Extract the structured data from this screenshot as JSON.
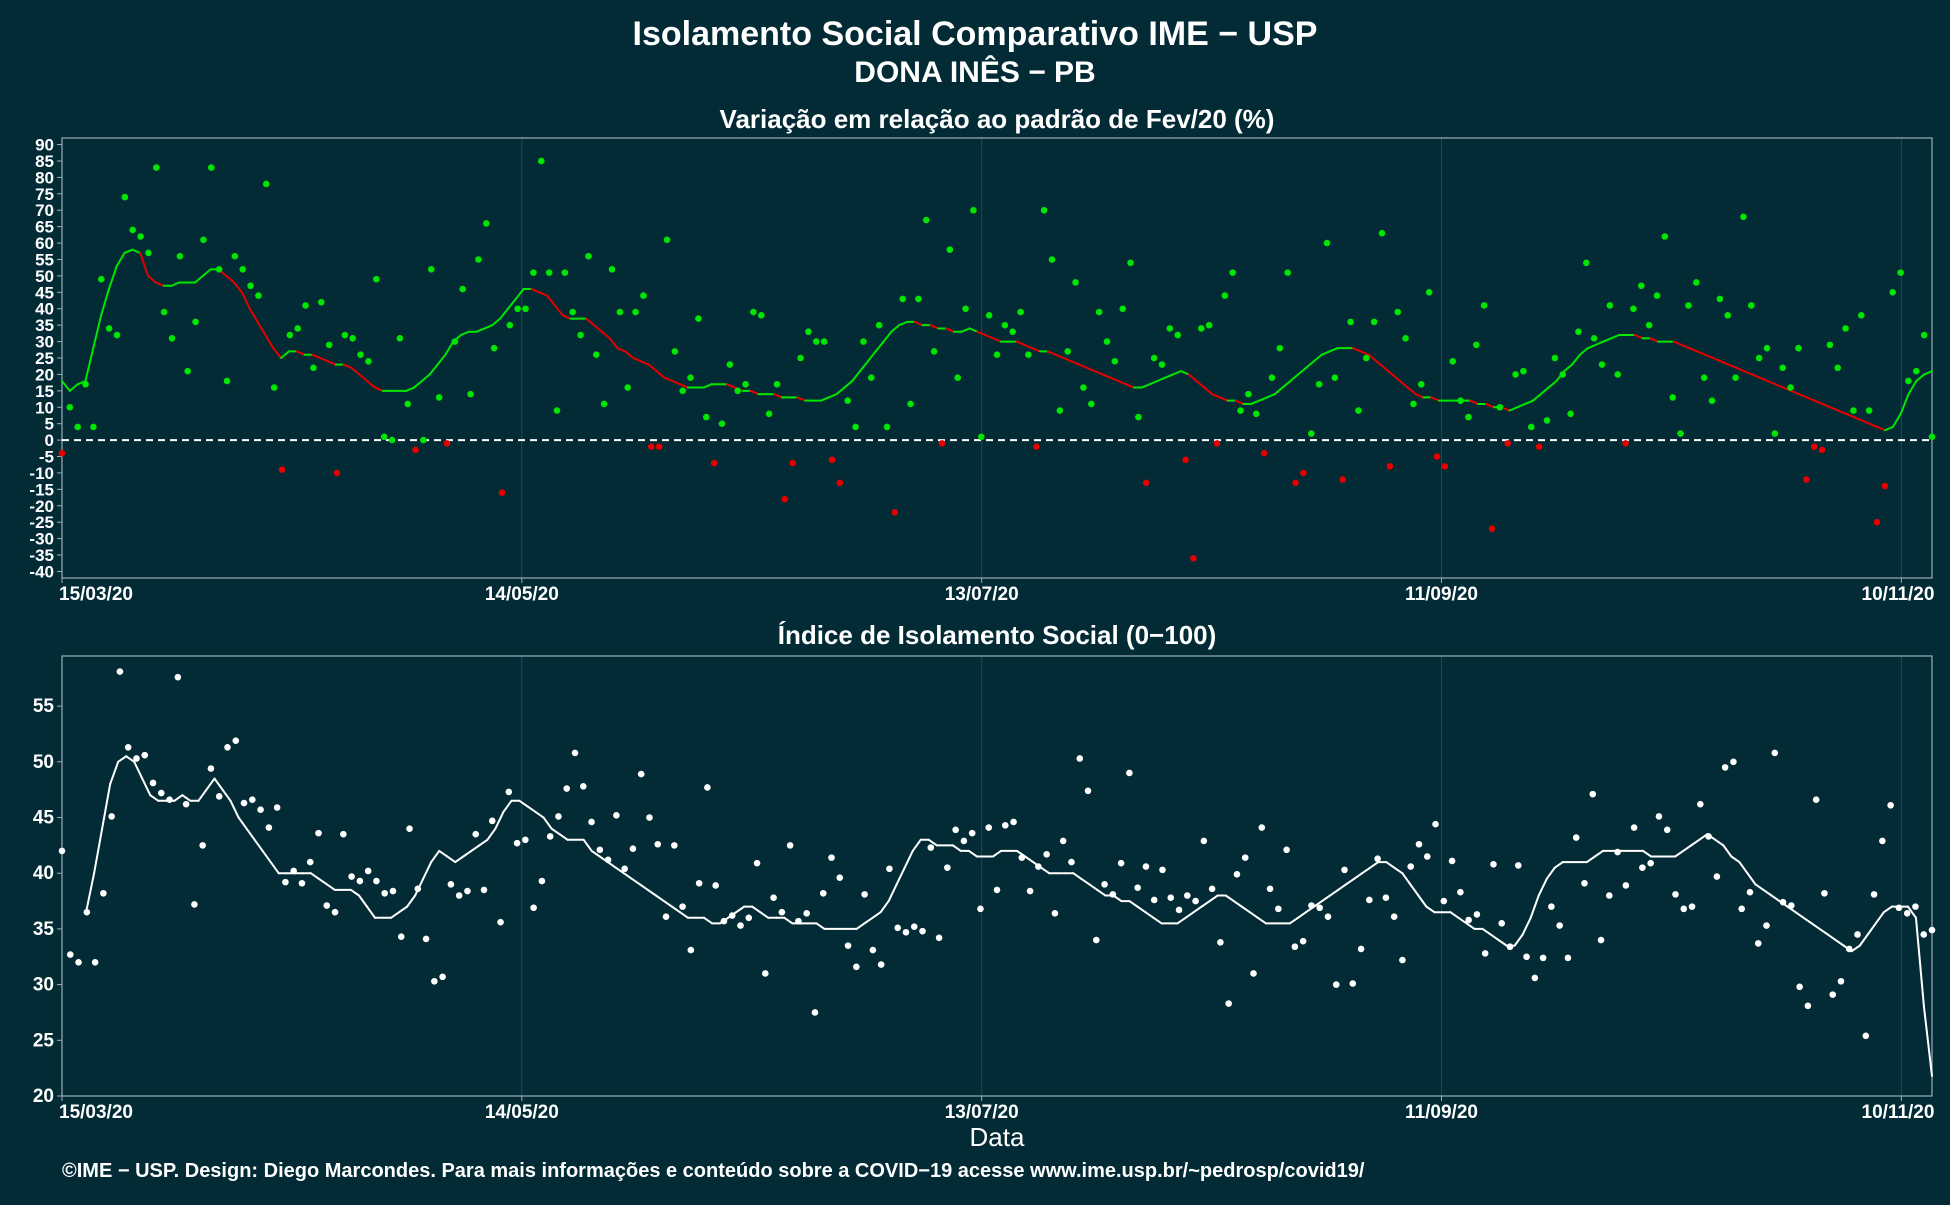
{
  "header": {
    "title": "Isolamento Social Comparativo IME − USP",
    "subtitle": "DONA INÊS − PB"
  },
  "footer": {
    "credit": "©IME − USP. Design: Diego Marcondes. Para mais informações e conteúdo sobre a COVID−19 acesse www.ime.usp.br/~pedrosp/covid19/"
  },
  "colors": {
    "background": "#022b35",
    "grid": "#1f4a55",
    "axis": "#9ab0b5",
    "text": "#ffffff",
    "positive": "#00e600",
    "negative": "#e60000",
    "index": "#ffffff"
  },
  "chart_data": [
    {
      "type": "scatter",
      "title": "Variação em relação ao padrão de Fev/20 (%)",
      "xlabel": "",
      "ylabel": "",
      "x_ticks": [
        "15/03/20",
        "14/05/20",
        "13/07/20",
        "11/09/20",
        "10/11/20"
      ],
      "x_range": [
        "15/03/20",
        "14/11/20"
      ],
      "ylim": [
        -42,
        92
      ],
      "y_ticks": [
        90,
        85,
        80,
        75,
        70,
        65,
        60,
        55,
        50,
        45,
        40,
        35,
        30,
        25,
        20,
        15,
        10,
        5,
        0,
        -5,
        -10,
        -15,
        -20,
        -25,
        -30,
        -35,
        -40
      ],
      "reference_line": 0,
      "grid": true,
      "legend": "none",
      "points_note": "positive values green, negative red",
      "series": [
        {
          "kind": "points",
          "values": [
            -4,
            10,
            4,
            17,
            4,
            49,
            34,
            32,
            74,
            64,
            62,
            57,
            83,
            39,
            31,
            56,
            21,
            36,
            61,
            83,
            52,
            18,
            56,
            52,
            47,
            44,
            78,
            16,
            -9,
            32,
            34,
            41,
            22,
            42,
            29,
            -10,
            32,
            31,
            26,
            24,
            49,
            1,
            0,
            31,
            11,
            -3,
            0,
            52,
            13,
            -1,
            30,
            46,
            14,
            55,
            66,
            28,
            -16,
            35,
            40,
            40,
            51,
            85,
            51,
            9,
            51,
            39,
            32,
            56,
            26,
            11,
            52,
            39,
            16,
            39,
            44,
            -2,
            -2,
            61,
            27,
            15,
            19,
            37,
            7,
            -7,
            5,
            23,
            15,
            17,
            39,
            38,
            8,
            17,
            -18,
            -7,
            25,
            33,
            30,
            30,
            -6,
            -13,
            12,
            4,
            30,
            19,
            35,
            4,
            -22,
            43,
            11,
            43,
            67,
            27,
            -1,
            58,
            19,
            40,
            70,
            1,
            38,
            26,
            35,
            33,
            39,
            26,
            -2,
            70,
            55,
            9,
            27,
            48,
            16,
            11,
            39,
            30,
            24,
            40,
            54,
            7,
            -13,
            25,
            23,
            34,
            32,
            -6,
            -36,
            34,
            35,
            -1,
            44,
            51,
            9,
            14,
            8,
            -4,
            19,
            28,
            51,
            -13,
            -10,
            2,
            17,
            60,
            19,
            -12,
            36,
            9,
            25,
            36,
            63,
            -8,
            39,
            31,
            11,
            17,
            45,
            -5,
            -8,
            24,
            12,
            7,
            29,
            41,
            -27,
            10,
            -1,
            20,
            21,
            4,
            -2,
            6,
            25,
            20,
            8,
            33,
            54,
            31,
            23,
            41,
            20,
            -1,
            40,
            47,
            35,
            44,
            62,
            13,
            2,
            41,
            48,
            19,
            12,
            43,
            38,
            19,
            68,
            41,
            25,
            28,
            2,
            22,
            16,
            28,
            -12,
            -2,
            -3,
            29,
            22,
            34,
            9,
            38,
            9,
            -25,
            -14,
            45,
            51,
            18,
            21,
            32,
            1
          ]
        },
        {
          "kind": "line",
          "values": [
            18,
            15,
            17,
            18,
            28,
            38,
            46,
            53,
            57,
            58,
            57,
            50,
            48,
            47,
            47,
            48,
            48,
            48,
            50,
            52,
            52,
            50,
            48,
            45,
            40,
            36,
            32,
            28,
            25,
            27,
            27,
            26,
            26,
            25,
            24,
            23,
            23,
            22,
            20,
            18,
            16,
            15,
            15,
            15,
            15,
            16,
            18,
            20,
            23,
            26,
            30,
            32,
            33,
            33,
            34,
            35,
            37,
            40,
            43,
            46,
            46,
            45,
            44,
            41,
            38,
            37,
            37,
            37,
            35,
            33,
            31,
            28,
            27,
            25,
            24,
            23,
            21,
            19,
            18,
            17,
            16,
            16,
            16,
            17,
            17,
            17,
            16,
            15,
            15,
            14,
            14,
            14,
            13,
            13,
            13,
            12,
            12,
            12,
            13,
            14,
            16,
            18,
            21,
            24,
            27,
            30,
            33,
            35,
            36,
            36,
            35,
            35,
            34,
            34,
            33,
            33,
            34,
            33,
            32,
            31,
            30,
            30,
            30,
            29,
            28,
            27,
            27,
            26,
            25,
            24,
            23,
            22,
            21,
            20,
            19,
            18,
            17,
            16,
            16,
            17,
            18,
            19,
            20,
            21,
            20,
            18,
            16,
            14,
            13,
            12,
            12,
            11,
            11,
            12,
            13,
            14,
            16,
            18,
            20,
            22,
            24,
            26,
            27,
            28,
            28,
            28,
            27,
            26,
            24,
            22,
            20,
            18,
            16,
            14,
            13,
            13,
            12,
            12,
            12,
            12,
            12,
            11,
            11,
            10,
            10,
            9,
            10,
            11,
            12,
            14,
            16,
            18,
            21,
            23,
            26,
            28,
            29,
            30,
            31,
            32,
            32,
            32,
            31,
            31,
            30,
            30,
            30,
            29,
            28,
            27,
            26,
            25,
            24,
            23,
            22,
            21,
            20,
            19,
            18,
            17,
            16,
            15,
            14,
            13,
            12,
            11,
            10,
            9,
            8,
            7,
            6,
            5,
            4,
            3,
            4,
            8,
            14,
            18,
            20,
            21
          ]
        }
      ]
    },
    {
      "type": "scatter",
      "title": "Índice de Isolamento Social (0−100)",
      "xlabel": "Data",
      "ylabel": "",
      "x_ticks": [
        "15/03/20",
        "14/05/20",
        "13/07/20",
        "11/09/20",
        "10/11/20"
      ],
      "x_range": [
        "15/03/20",
        "14/11/20"
      ],
      "ylim": [
        20,
        59.5
      ],
      "y_ticks": [
        55,
        50,
        45,
        40,
        35,
        30,
        25,
        20
      ],
      "grid": true,
      "legend": "none",
      "series": [
        {
          "kind": "points",
          "values": [
            42,
            32.7,
            32,
            36.5,
            32,
            38.2,
            45.1,
            58.1,
            51.3,
            50.3,
            50.6,
            48.1,
            47.2,
            46.6,
            57.6,
            46.2,
            37.2,
            42.5,
            49.4,
            46.9,
            51.3,
            51.9,
            46.3,
            46.6,
            45.7,
            44.1,
            45.9,
            39.2,
            40.2,
            39.1,
            41,
            43.6,
            37.1,
            36.5,
            43.5,
            39.7,
            39.3,
            40.2,
            39.3,
            38.2,
            38.4,
            34.3,
            44,
            38.6,
            34.1,
            30.3,
            30.7,
            39,
            38,
            38.4,
            43.5,
            38.5,
            44.7,
            35.6,
            47.3,
            42.7,
            43,
            36.9,
            39.3,
            43.3,
            45.1,
            47.6,
            50.8,
            47.8,
            44.6,
            42.1,
            41.2,
            45.2,
            40.4,
            42.2,
            48.9,
            45,
            42.6,
            36.1,
            42.5,
            37,
            33.1,
            39.1,
            47.7,
            38.9,
            35.7,
            36.2,
            35.3,
            36,
            40.9,
            31,
            37.8,
            36.5,
            42.5,
            35.7,
            36.4,
            27.5,
            38.2,
            41.4,
            39.6,
            33.5,
            31.6,
            38.1,
            33.1,
            31.8,
            40.4,
            35.1,
            34.7,
            35.2,
            34.8,
            42.3,
            34.2,
            40.5,
            43.9,
            42.9,
            43.6,
            36.8,
            44.1,
            38.5,
            44.3,
            44.6,
            41.4,
            38.4,
            40.6,
            41.7,
            36.4,
            42.9,
            41,
            50.3,
            47.4,
            34,
            39,
            38.1,
            40.9,
            49,
            38.7,
            40.6,
            37.6,
            40.3,
            37.8,
            36.7,
            38,
            37.5,
            42.9,
            38.6,
            33.8,
            28.3,
            39.9,
            41.4,
            31,
            44.1,
            38.6,
            36.8,
            42.1,
            33.4,
            33.9,
            37.1,
            36.9,
            36.1,
            30,
            40.3,
            30.1,
            33.2,
            37.6,
            41.3,
            37.8,
            36.1,
            32.2,
            40.6,
            42.6,
            41.5,
            44.4,
            37.5,
            41.1,
            38.3,
            35.8,
            36.3,
            32.8,
            40.8,
            35.5,
            33.4,
            40.7,
            32.5,
            30.6,
            32.4,
            37,
            35.3,
            32.4,
            43.2,
            39.1,
            47.1,
            34,
            38,
            41.9,
            38.9,
            44.1,
            40.5,
            40.9,
            45.1,
            43.9,
            38.1,
            36.8,
            37,
            46.2,
            43.3,
            39.7,
            49.5,
            50,
            36.8,
            38.3,
            33.7,
            35.3,
            50.8,
            37.4,
            37.1,
            29.8,
            28.1,
            46.6,
            38.2,
            29.1,
            30.3,
            33.2,
            34.5,
            25.4,
            38.1,
            42.9,
            46.1,
            36.9,
            36.4,
            37,
            34.5,
            34.9
          ]
        },
        {
          "kind": "line",
          "values": [
            null,
            null,
            null,
            36.5,
            40,
            44,
            48,
            50,
            50.5,
            50,
            48.5,
            47,
            46.5,
            46.5,
            46.5,
            47,
            46.5,
            46.5,
            47.5,
            48.5,
            47.5,
            46.5,
            45,
            44,
            43,
            42,
            41,
            40,
            40,
            40,
            40,
            40,
            39.5,
            39,
            38.5,
            38.5,
            38.5,
            38,
            37,
            36,
            36,
            36,
            36.5,
            37,
            38,
            39.5,
            41,
            42,
            41.5,
            41,
            41.5,
            42,
            42.5,
            43,
            44,
            45.5,
            46.5,
            46.5,
            46,
            45.5,
            45,
            44,
            43.5,
            43,
            43,
            43,
            42,
            41.5,
            41,
            40.5,
            40,
            39.5,
            39,
            38.5,
            38,
            37.5,
            37,
            36.5,
            36,
            36,
            36,
            35.5,
            35.5,
            36,
            36.5,
            37,
            37,
            36.5,
            36,
            36,
            36,
            35.5,
            35.5,
            35.5,
            35.5,
            35,
            35,
            35,
            35,
            35,
            35.5,
            36,
            36.5,
            37.5,
            39,
            40.5,
            42,
            43,
            43,
            42.5,
            42.5,
            42.5,
            42,
            42,
            41.5,
            41.5,
            41.5,
            42,
            42,
            42,
            41.5,
            41,
            40.5,
            40,
            40,
            40,
            40,
            39.5,
            39,
            38.5,
            38,
            38,
            37.5,
            37.5,
            37,
            36.5,
            36,
            35.5,
            35.5,
            35.5,
            36,
            36.5,
            37,
            37.5,
            38,
            38,
            37.5,
            37,
            36.5,
            36,
            35.5,
            35.5,
            35.5,
            35.5,
            36,
            36.5,
            37,
            37.5,
            38,
            38.5,
            39,
            39.5,
            40,
            40.5,
            41,
            41,
            40.5,
            40,
            39,
            38,
            37,
            36.5,
            36.5,
            36.5,
            36,
            35.5,
            35,
            35,
            34.5,
            34,
            33.5,
            33.5,
            34.5,
            36,
            38,
            39.5,
            40.5,
            41,
            41,
            41,
            41,
            41.5,
            42,
            42,
            42,
            42,
            42,
            42,
            41.5,
            41.5,
            41.5,
            41.5,
            42,
            42.5,
            43,
            43.5,
            43,
            42.5,
            41.5,
            41,
            40,
            39,
            38.5,
            38,
            37.5,
            37,
            36.5,
            36,
            35.5,
            35,
            34.5,
            34,
            33.5,
            33,
            33.5,
            34.5,
            35.5,
            36.5,
            37,
            37,
            37,
            36,
            28,
            21.8
          ]
        }
      ]
    }
  ]
}
